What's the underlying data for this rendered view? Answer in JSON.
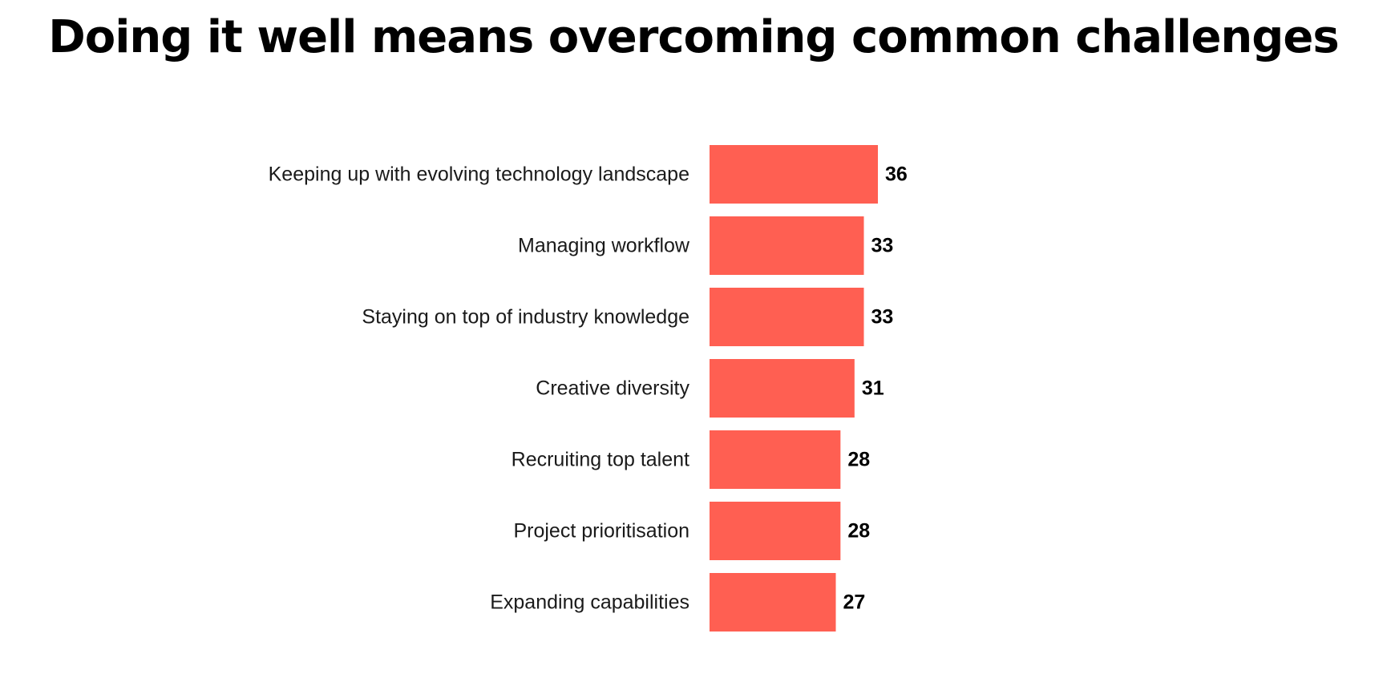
{
  "page": {
    "title": "Doing it well means overcoming common challenges"
  },
  "colors": {
    "bar": "#ff5f52",
    "label": "#1a1a1a",
    "value": "#000000"
  },
  "chart_data": {
    "type": "bar",
    "orientation": "horizontal",
    "title": "",
    "xlabel": "",
    "ylabel": "",
    "grid": false,
    "legend": "none",
    "xlim": [
      0,
      36
    ],
    "categories": [
      "Keeping up with evolving technology landscape",
      "Managing workflow",
      "Staying on top of industry knowledge",
      "Creative diversity",
      "Recruiting top talent",
      "Project prioritisation",
      "Expanding capabilities"
    ],
    "values": [
      36,
      33,
      33,
      31,
      28,
      28,
      27
    ],
    "value_labels": [
      "36",
      "33",
      "33",
      "31",
      "28",
      "28",
      "27"
    ]
  }
}
